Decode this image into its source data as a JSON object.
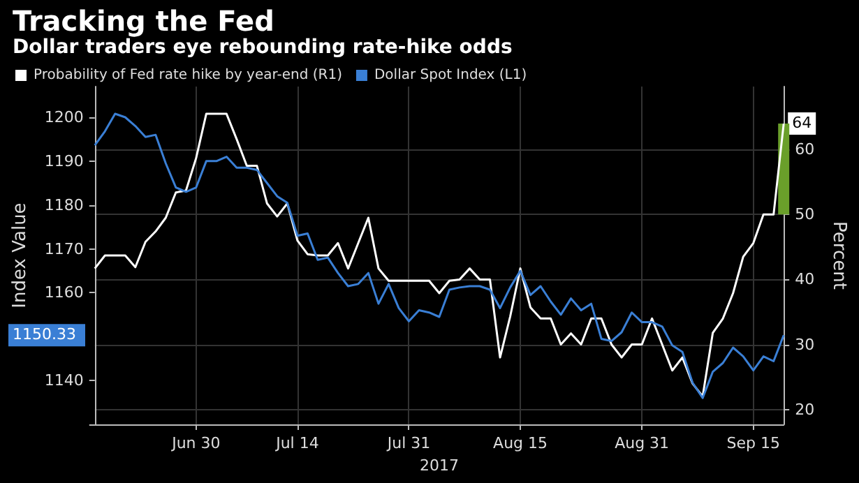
{
  "chart_data": {
    "type": "line",
    "title": "Tracking the Fed",
    "subtitle": "Dollar traders eye rebounding rate-hike odds",
    "xlabel": "2017",
    "ylabel": "Index Value",
    "y2label": "Percent",
    "categories": [
      null,
      null,
      null,
      null,
      null,
      null,
      null,
      null,
      null,
      null,
      "Jun 30",
      null,
      null,
      null,
      null,
      null,
      null,
      null,
      null,
      null,
      "Jul 14",
      null,
      null,
      null,
      null,
      null,
      null,
      null,
      null,
      null,
      null,
      "Jul 31",
      null,
      null,
      null,
      null,
      null,
      null,
      null,
      null,
      null,
      null,
      "Aug 15",
      null,
      null,
      null,
      null,
      null,
      null,
      null,
      null,
      null,
      null,
      null,
      "Aug 31",
      null,
      null,
      null,
      null,
      null,
      null,
      null,
      null,
      null,
      null,
      "Sep 15",
      null,
      null,
      null
    ],
    "series": [
      {
        "name": "Probability of Fed rate hike by year-end (R1)",
        "color": "#ffffff",
        "axis": "y2",
        "values": [
          41.7,
          43.7,
          43.7,
          43.7,
          41.9,
          45.8,
          47.4,
          49.5,
          53.4,
          53.7,
          58.7,
          65.5,
          65.5,
          65.5,
          61.6,
          57.5,
          57.5,
          51.7,
          49.7,
          51.7,
          46,
          43.9,
          43.7,
          43.7,
          45.6,
          41.7,
          45.6,
          49.5,
          41.7,
          39.8,
          39.8,
          39.8,
          39.8,
          39.8,
          37.9,
          39.8,
          40,
          41.7,
          40,
          40,
          28,
          34.3,
          41.7,
          35.7,
          34,
          34,
          30,
          31.7,
          30,
          34,
          34,
          30,
          28,
          30,
          30,
          34,
          30,
          26,
          28,
          24,
          22,
          31.8,
          34,
          37.9,
          43.5,
          45.6,
          50,
          50,
          64
        ],
        "value_labels": [
          null,
          null,
          null,
          null,
          null,
          null,
          null,
          null,
          null,
          null,
          null,
          null,
          null,
          null,
          null,
          null,
          null,
          null,
          null,
          null,
          null,
          null,
          null,
          null,
          null,
          null,
          null,
          null,
          null,
          null,
          null,
          null,
          null,
          null,
          null,
          null,
          null,
          null,
          null,
          null,
          null,
          null,
          null,
          null,
          null,
          null,
          null,
          null,
          null,
          null,
          null,
          null,
          null,
          null,
          null,
          null,
          null,
          null,
          null,
          null,
          null,
          null,
          null,
          null,
          null,
          null,
          null,
          null,
          "64"
        ]
      },
      {
        "name": "Dollar Spot Index (L1)",
        "color": "#3a7fd5",
        "axis": "y",
        "values": [
          1193.6,
          1196.8,
          1200.8,
          1200,
          1198,
          1195.5,
          1196,
          1189.5,
          1184,
          1183,
          1184,
          1190,
          1190,
          1191,
          1188.5,
          1188.5,
          1188,
          1185,
          1182,
          1180.5,
          1173,
          1173.5,
          1167.5,
          1168,
          1164.5,
          1161.5,
          1162,
          1164.5,
          1157.5,
          1162,
          1156.5,
          1153.5,
          1156,
          1155.5,
          1154.5,
          1160.7,
          1161.2,
          1161.5,
          1161.5,
          1160.7,
          1156.5,
          1161.2,
          1165,
          1159.5,
          1161.5,
          1158,
          1155,
          1158.7,
          1156,
          1157.5,
          1149.5,
          1149,
          1151,
          1155.5,
          1153.3,
          1153.3,
          1152.3,
          1148,
          1146.5,
          1139.5,
          1136,
          1142,
          1144,
          1147.5,
          1145.5,
          1142.3,
          1145.5,
          1144.4,
          1150.33
        ],
        "value_labels": [
          null,
          null,
          null,
          null,
          null,
          null,
          null,
          null,
          null,
          null,
          null,
          null,
          null,
          null,
          null,
          null,
          null,
          null,
          null,
          null,
          null,
          null,
          null,
          null,
          null,
          null,
          null,
          null,
          null,
          null,
          null,
          null,
          null,
          null,
          null,
          null,
          null,
          null,
          null,
          null,
          null,
          null,
          null,
          null,
          null,
          null,
          null,
          null,
          null,
          null,
          null,
          null,
          null,
          null,
          null,
          null,
          null,
          null,
          null,
          null,
          null,
          null,
          null,
          null,
          null,
          null,
          null,
          null,
          null
        ]
      },
      {
        "type": "bar",
        "color": "#6a9f2a",
        "axis": "y2",
        "values": [
          null,
          null,
          null,
          null,
          null,
          null,
          null,
          null,
          null,
          null,
          null,
          null,
          null,
          null,
          null,
          null,
          null,
          null,
          null,
          null,
          null,
          null,
          null,
          null,
          null,
          null,
          null,
          null,
          null,
          null,
          null,
          null,
          null,
          null,
          null,
          null,
          null,
          null,
          null,
          null,
          null,
          null,
          null,
          null,
          null,
          null,
          null,
          null,
          null,
          null,
          null,
          null,
          null,
          null,
          null,
          null,
          null,
          null,
          null,
          null,
          null,
          null,
          null,
          null,
          null,
          null,
          null,
          null,
          14
        ],
        "base": [
          null,
          null,
          null,
          null,
          null,
          null,
          null,
          null,
          null,
          null,
          null,
          null,
          null,
          null,
          null,
          null,
          null,
          null,
          null,
          null,
          null,
          null,
          null,
          null,
          null,
          null,
          null,
          null,
          null,
          null,
          null,
          null,
          null,
          null,
          null,
          null,
          null,
          null,
          null,
          null,
          null,
          null,
          null,
          null,
          null,
          null,
          null,
          null,
          null,
          null,
          null,
          null,
          null,
          null,
          null,
          null,
          null,
          null,
          null,
          null,
          null,
          null,
          null,
          null,
          null,
          null,
          null,
          null,
          50
        ]
      }
    ],
    "ylim": [
      1130,
      1207
    ],
    "annotations": [
      "1150.33"
    ],
    "yticks": [
      {
        "value": 1130,
        "label": null
      },
      1140,
      1160,
      1170,
      1180,
      1190,
      1200
    ],
    "y2lim": [
      17.7,
      69.7
    ],
    "y2ticks": [
      20,
      30,
      40,
      50,
      60
    ],
    "grid": true,
    "legend": "top left",
    "marker": "none",
    "line_style": "solid"
  }
}
